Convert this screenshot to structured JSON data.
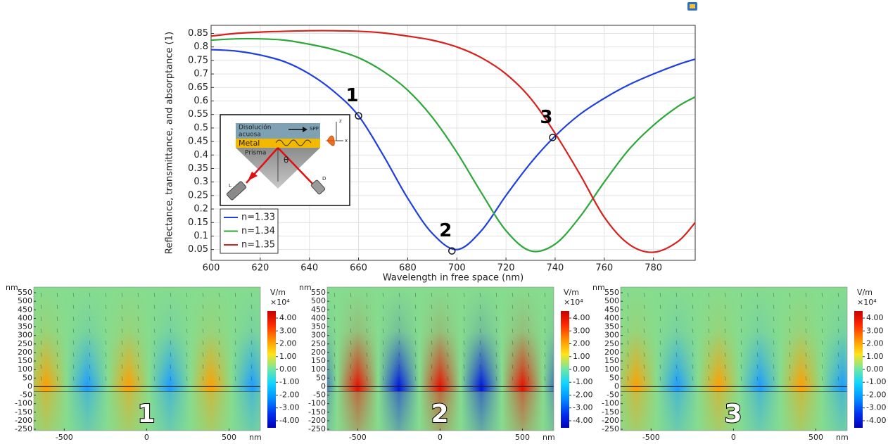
{
  "chart_data": {
    "type": "line",
    "xlabel": "Wavelength in free space (nm)",
    "ylabel": "Reflectance, transmittance, and absorptance (1)",
    "x": [
      600,
      610,
      620,
      630,
      640,
      650,
      660,
      670,
      680,
      690,
      700,
      710,
      720,
      730,
      740,
      750,
      760,
      770,
      780,
      790,
      797
    ],
    "series": [
      {
        "name": "n=1.33",
        "color": "#1f3fe0",
        "values": [
          0.79,
          0.785,
          0.77,
          0.745,
          0.7,
          0.635,
          0.545,
          0.4,
          0.24,
          0.11,
          0.05,
          0.12,
          0.25,
          0.37,
          0.47,
          0.55,
          0.61,
          0.66,
          0.7,
          0.735,
          0.755
        ]
      },
      {
        "name": "n=1.34",
        "color": "#2ca83a",
        "values": [
          0.825,
          0.83,
          0.83,
          0.825,
          0.81,
          0.79,
          0.76,
          0.71,
          0.64,
          0.54,
          0.41,
          0.26,
          0.12,
          0.045,
          0.07,
          0.17,
          0.3,
          0.42,
          0.51,
          0.58,
          0.615
        ]
      },
      {
        "name": "n=1.35",
        "color": "#d8201c",
        "values": [
          0.84,
          0.85,
          0.855,
          0.858,
          0.86,
          0.86,
          0.858,
          0.852,
          0.84,
          0.825,
          0.8,
          0.76,
          0.7,
          0.61,
          0.48,
          0.33,
          0.17,
          0.07,
          0.04,
          0.08,
          0.15
        ]
      }
    ],
    "xlim": [
      600,
      797
    ],
    "ylim": [
      0.01,
      0.88
    ],
    "xticks": [
      600,
      620,
      640,
      660,
      680,
      700,
      720,
      740,
      760,
      780
    ],
    "yticks": [
      0.05,
      0.1,
      0.15,
      0.2,
      0.25,
      0.3,
      0.35,
      0.4,
      0.45,
      0.5,
      0.55,
      0.6,
      0.65,
      0.7,
      0.75,
      0.8,
      0.85
    ],
    "grid": true,
    "legend": "lower left",
    "annotations": [
      {
        "label": "1",
        "x": 660,
        "y": 0.545
      },
      {
        "label": "2",
        "x": 698,
        "y": 0.045
      },
      {
        "label": "3",
        "x": 739,
        "y": 0.465
      }
    ]
  },
  "inset": {
    "solution": [
      "Disolución",
      "acuosa"
    ],
    "wave": "SPP",
    "metal": "Metal",
    "prism": "Prisma",
    "angle": "θ",
    "laser": "L",
    "detector": "D",
    "z_axis": "z",
    "x_axis": "x"
  },
  "field_plots": {
    "y_unit": "nm",
    "x_unit": "nm",
    "colorbar_unit": "V/m",
    "colorbar_scale": "×10⁴",
    "xlim": [
      -685,
      690
    ],
    "ylim": [
      -258,
      583
    ],
    "xticks": [
      -500,
      0,
      500
    ],
    "yticks": [
      -250,
      -200,
      -150,
      -100,
      -50,
      0,
      50,
      100,
      150,
      200,
      250,
      300,
      350,
      400,
      450,
      500,
      550
    ],
    "clim": [
      -4.55,
      4.55
    ],
    "cticks": [
      {
        "value": 4,
        "label": "4.00"
      },
      {
        "value": 3,
        "label": "3.00"
      },
      {
        "value": 2,
        "label": "2.00"
      },
      {
        "value": 1,
        "label": "1.00"
      },
      {
        "value": 0,
        "label": "0.00"
      },
      {
        "value": -1,
        "label": "-1.00"
      },
      {
        "value": -2,
        "label": "-2.00"
      },
      {
        "value": -3,
        "label": "-3.00"
      },
      {
        "value": -4,
        "label": "-4.00"
      }
    ],
    "panels": [
      {
        "label": "1"
      },
      {
        "label": "2"
      },
      {
        "label": "3"
      }
    ]
  }
}
